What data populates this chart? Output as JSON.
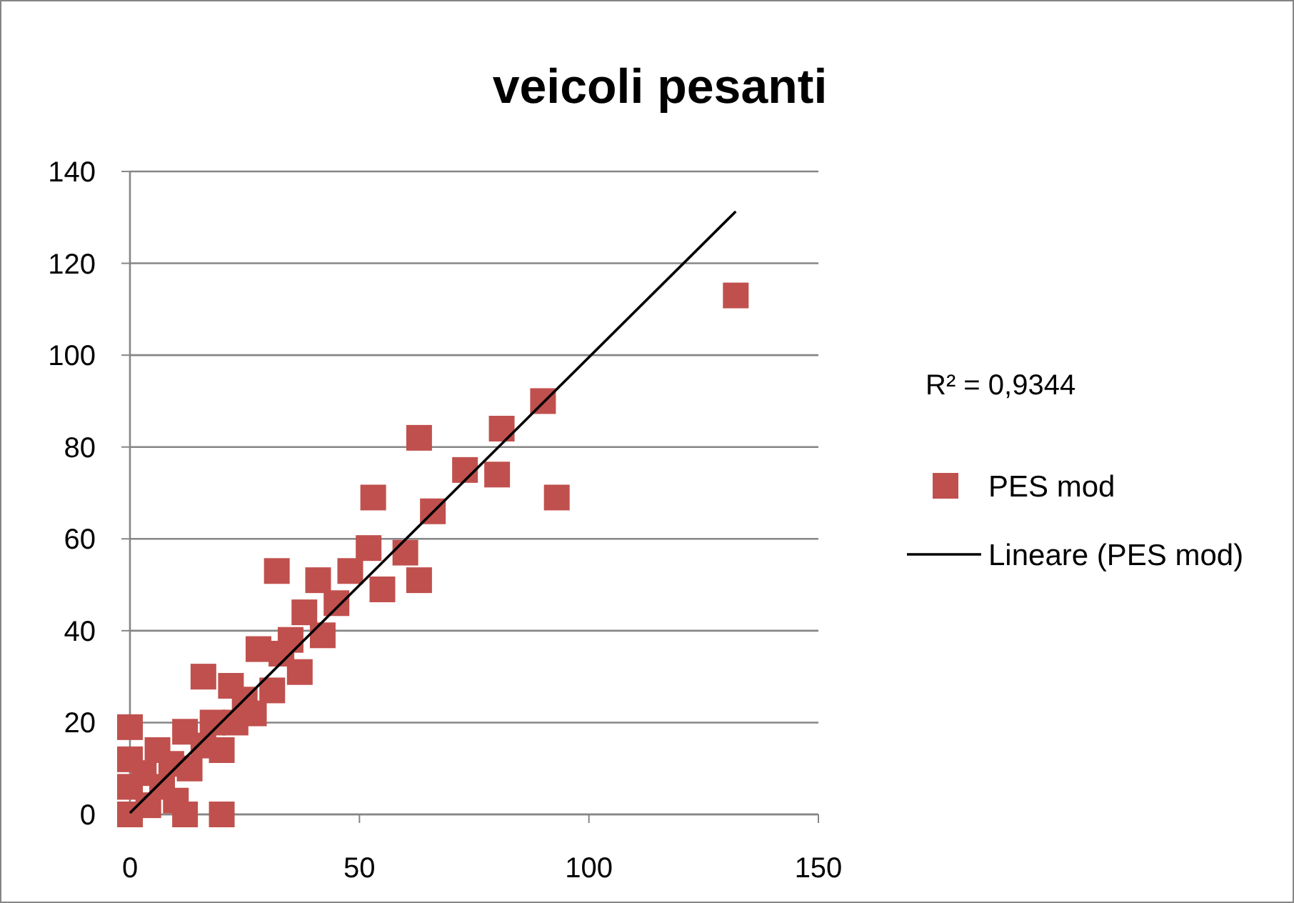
{
  "chart_data": {
    "type": "scatter",
    "title": "veicoli pesanti",
    "xlim": [
      0,
      150
    ],
    "xticks": [
      0,
      50,
      100,
      150
    ],
    "ylim": [
      0,
      140
    ],
    "yticks": [
      0,
      20,
      40,
      60,
      80,
      100,
      120,
      140
    ],
    "grid": "y",
    "legend": "right",
    "marker": "square",
    "annotations": [
      "R² = 0,9344"
    ],
    "series": [
      {
        "name": "PES mod",
        "color": "#c0504d",
        "x": [
          0,
          0,
          0,
          0,
          3,
          4,
          6,
          7,
          9,
          10,
          12,
          12,
          13,
          16,
          16,
          18,
          20,
          20,
          22,
          23,
          25,
          27,
          28,
          31,
          32,
          33,
          35,
          37,
          38,
          41,
          42,
          45,
          48,
          52,
          53,
          55,
          60,
          63,
          63,
          66,
          73,
          80,
          81,
          90,
          93,
          132
        ],
        "values": [
          0,
          6,
          12,
          19,
          9,
          2,
          14,
          6,
          11,
          3,
          0,
          18,
          10,
          30,
          15,
          20,
          0,
          14,
          28,
          20,
          25,
          22,
          36,
          27,
          53,
          35,
          38,
          31,
          44,
          51,
          39,
          46,
          53,
          58,
          69,
          49,
          57,
          82,
          51,
          66,
          75,
          74,
          84,
          90,
          69,
          113
        ]
      },
      {
        "name": "Lineare (PES mod)",
        "color": "#000000",
        "type": "line",
        "marker": "none",
        "x": [
          0,
          132
        ],
        "values": [
          0.3,
          131.3
        ]
      }
    ]
  }
}
